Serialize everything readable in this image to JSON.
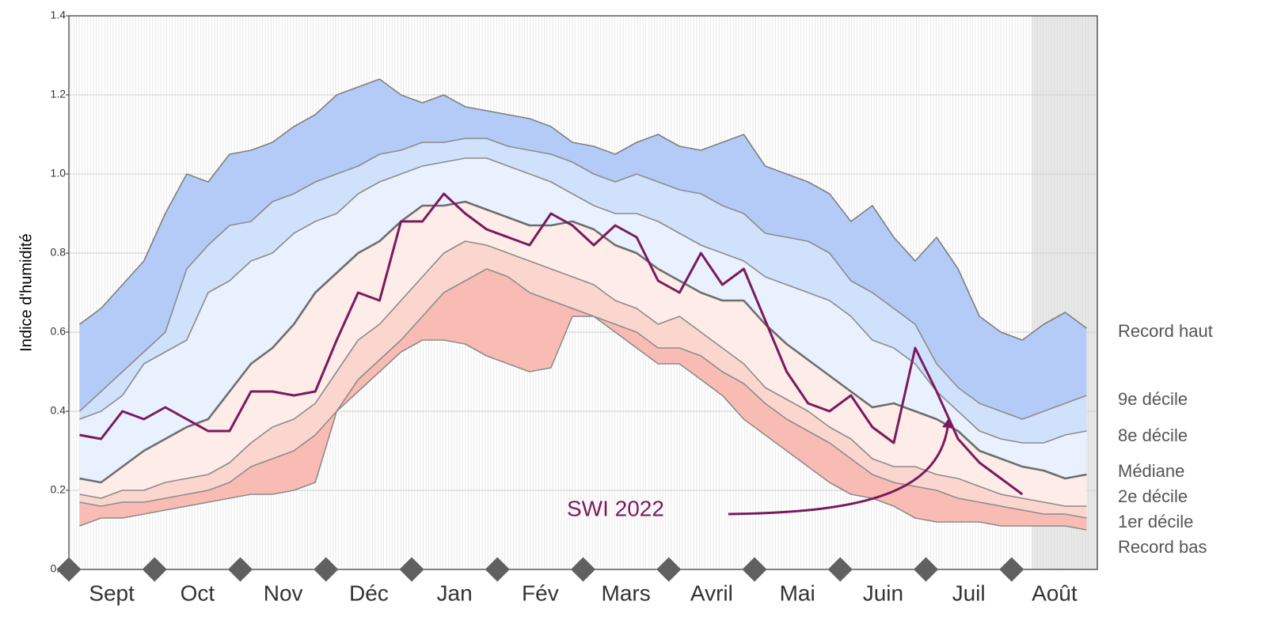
{
  "chart_data": {
    "type": "band-line",
    "y_label": "Indice d'humidité",
    "annotation": "SWI 2022",
    "categories": [
      null,
      null,
      "Sept",
      null,
      null,
      null,
      "Oct",
      null,
      null,
      null,
      "Nov",
      null,
      null,
      null,
      "Déc",
      null,
      null,
      null,
      "Jan",
      null,
      null,
      null,
      "Fév",
      null,
      null,
      null,
      "Mars",
      null,
      null,
      null,
      "Avril",
      null,
      null,
      null,
      "Mai",
      null,
      null,
      null,
      "Juin",
      null,
      null,
      null,
      "Juil",
      null,
      null,
      null,
      "Août",
      null
    ],
    "ylim": [
      0,
      1.4
    ],
    "yticks": [
      {
        "value": 0,
        "label": "0.0"
      },
      0.2,
      0.4,
      0.6,
      0.8,
      {
        "value": 1,
        "label": "1.0"
      },
      1.2,
      1.4
    ],
    "grid": true,
    "legend": "right",
    "series": [
      {
        "name": "Record haut",
        "color": "#7f7f7f",
        "fill": "#b4cbf7",
        "values": [
          0.62,
          0.66,
          0.72,
          0.78,
          0.9,
          1.0,
          0.98,
          1.05,
          1.06,
          1.08,
          1.12,
          1.15,
          1.2,
          1.22,
          1.24,
          1.2,
          1.18,
          1.2,
          1.17,
          1.16,
          1.15,
          1.14,
          1.12,
          1.08,
          1.07,
          1.05,
          1.08,
          1.1,
          1.07,
          1.06,
          1.08,
          1.1,
          1.02,
          1.0,
          0.98,
          0.95,
          0.88,
          0.92,
          0.84,
          0.78,
          0.84,
          0.76,
          0.64,
          0.6,
          0.58,
          0.62,
          0.65,
          0.61
        ]
      },
      {
        "name": "9e décile",
        "color": "#8c8c8c",
        "fill": "#d0e1fc",
        "values": [
          0.4,
          0.45,
          0.5,
          0.55,
          0.6,
          0.76,
          0.82,
          0.87,
          0.88,
          0.93,
          0.95,
          0.98,
          1.0,
          1.02,
          1.05,
          1.06,
          1.08,
          1.08,
          1.09,
          1.09,
          1.07,
          1.06,
          1.05,
          1.03,
          1.0,
          0.98,
          1.0,
          0.98,
          0.96,
          0.95,
          0.92,
          0.9,
          0.85,
          0.84,
          0.83,
          0.8,
          0.73,
          0.7,
          0.66,
          0.62,
          0.52,
          0.46,
          0.42,
          0.4,
          0.38,
          0.4,
          0.42,
          0.44
        ]
      },
      {
        "name": "8e décile",
        "color": "#8c8c8c",
        "fill": "#e9f1fe",
        "values": [
          0.38,
          0.4,
          0.44,
          0.52,
          0.55,
          0.58,
          0.7,
          0.73,
          0.78,
          0.8,
          0.85,
          0.88,
          0.9,
          0.95,
          0.98,
          1.0,
          1.02,
          1.03,
          1.04,
          1.04,
          1.02,
          1.0,
          0.98,
          0.95,
          0.92,
          0.9,
          0.9,
          0.88,
          0.85,
          0.82,
          0.8,
          0.78,
          0.74,
          0.72,
          0.7,
          0.68,
          0.64,
          0.58,
          0.56,
          0.52,
          0.45,
          0.4,
          0.35,
          0.33,
          0.32,
          0.32,
          0.34,
          0.35
        ]
      },
      {
        "name": "Médiane",
        "color": "#6e6e6e",
        "fill": "#fdece8",
        "values": [
          0.23,
          0.22,
          0.26,
          0.3,
          0.33,
          0.36,
          0.38,
          0.45,
          0.52,
          0.56,
          0.62,
          0.7,
          0.75,
          0.8,
          0.83,
          0.88,
          0.92,
          0.92,
          0.93,
          0.91,
          0.89,
          0.87,
          0.87,
          0.88,
          0.86,
          0.82,
          0.8,
          0.76,
          0.73,
          0.7,
          0.68,
          0.68,
          0.62,
          0.57,
          0.53,
          0.49,
          0.45,
          0.41,
          0.42,
          0.4,
          0.38,
          0.35,
          0.3,
          0.28,
          0.26,
          0.25,
          0.23,
          0.24
        ]
      },
      {
        "name": "2e décile",
        "color": "#8c8c8c",
        "fill": "#fbd6cf",
        "values": [
          0.19,
          0.18,
          0.2,
          0.2,
          0.22,
          0.23,
          0.24,
          0.27,
          0.32,
          0.36,
          0.38,
          0.42,
          0.5,
          0.58,
          0.62,
          0.68,
          0.74,
          0.8,
          0.83,
          0.82,
          0.8,
          0.78,
          0.76,
          0.74,
          0.72,
          0.68,
          0.66,
          0.62,
          0.64,
          0.6,
          0.56,
          0.52,
          0.46,
          0.43,
          0.4,
          0.36,
          0.33,
          0.28,
          0.26,
          0.26,
          0.24,
          0.23,
          0.21,
          0.19,
          0.18,
          0.17,
          0.16,
          0.16
        ]
      },
      {
        "name": "1er décile",
        "color": "#8c8c8c",
        "fill": "#f8bcb4",
        "values": [
          0.17,
          0.16,
          0.17,
          0.17,
          0.18,
          0.19,
          0.2,
          0.22,
          0.26,
          0.28,
          0.3,
          0.34,
          0.4,
          0.48,
          0.53,
          0.58,
          0.64,
          0.7,
          0.73,
          0.76,
          0.74,
          0.7,
          0.68,
          0.66,
          0.64,
          0.62,
          0.6,
          0.56,
          0.56,
          0.54,
          0.5,
          0.47,
          0.42,
          0.38,
          0.35,
          0.32,
          0.28,
          0.24,
          0.22,
          0.21,
          0.2,
          0.18,
          0.17,
          0.16,
          0.15,
          0.14,
          0.14,
          0.13
        ]
      },
      {
        "name": "Record bas",
        "color": "#8c8c8c",
        "values": [
          0.11,
          0.13,
          0.13,
          0.14,
          0.15,
          0.16,
          0.17,
          0.18,
          0.19,
          0.19,
          0.2,
          0.22,
          0.4,
          0.45,
          0.5,
          0.55,
          0.58,
          0.58,
          0.57,
          0.54,
          0.52,
          0.5,
          0.51,
          0.64,
          0.64,
          0.6,
          0.56,
          0.52,
          0.52,
          0.48,
          0.44,
          0.38,
          0.34,
          0.3,
          0.26,
          0.22,
          0.19,
          0.18,
          0.16,
          0.13,
          0.12,
          0.12,
          0.12,
          0.11,
          0.11,
          0.11,
          0.11,
          0.1
        ]
      },
      {
        "name": "SWI 2022",
        "color": "#7a1a5e",
        "values": [
          0.34,
          0.33,
          0.4,
          0.38,
          0.41,
          0.38,
          0.35,
          0.35,
          0.45,
          0.45,
          0.44,
          0.45,
          0.58,
          0.7,
          0.68,
          0.88,
          0.88,
          0.95,
          0.9,
          0.86,
          0.84,
          0.82,
          0.9,
          0.87,
          0.82,
          0.87,
          0.84,
          0.73,
          0.7,
          0.8,
          0.72,
          0.76,
          0.63,
          0.5,
          0.42,
          0.4,
          0.44,
          0.36,
          0.32,
          0.56,
          0.45,
          0.33,
          0.27,
          0.23,
          0.19,
          null,
          null,
          null
        ]
      }
    ]
  }
}
